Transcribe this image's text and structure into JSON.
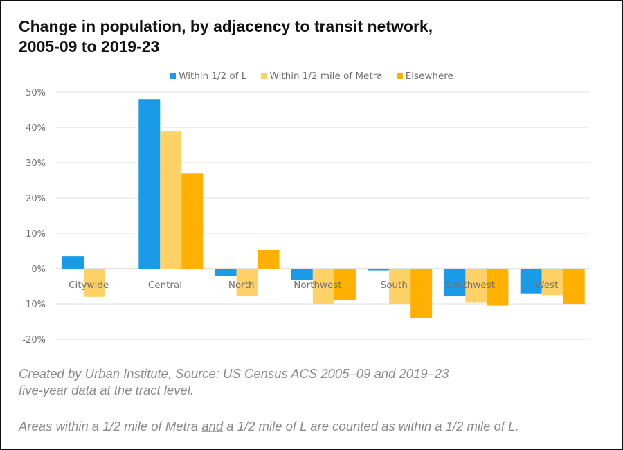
{
  "chart_data": {
    "type": "bar",
    "title": "Change in population, by adjacency to transit network, 2005-09 to 2019-23",
    "title_lines": [
      "Change in population, by adjacency to transit network,",
      "2005-09 to 2019-23"
    ],
    "xlabel": "",
    "ylabel": "",
    "ylim": [
      -0.2,
      0.5
    ],
    "yticks": [
      0.5,
      0.4,
      0.3,
      0.2,
      0.1,
      0.0,
      -0.1,
      -0.2
    ],
    "ytick_labels": [
      "50%",
      "40%",
      "30%",
      "20%",
      "10%",
      "0%",
      "-10%",
      "-20%"
    ],
    "grid": true,
    "legend_position": "top-center",
    "categories": [
      "Citywide",
      "Central",
      "North",
      "Northwest",
      "South",
      "Southwest",
      "West"
    ],
    "series": [
      {
        "name": "Within 1/2 of L",
        "color": "#1a9be8",
        "values": [
          0.035,
          0.48,
          -0.02,
          -0.033,
          -0.005,
          -0.077,
          -0.07
        ]
      },
      {
        "name": "Within 1/2 mile of Metra",
        "color": "#ffd166",
        "values": [
          -0.08,
          0.39,
          -0.078,
          -0.1,
          -0.1,
          -0.095,
          -0.075
        ]
      },
      {
        "name": "Elsewhere",
        "color": "#ffb000",
        "values": [
          0.0,
          0.27,
          0.053,
          -0.09,
          -0.14,
          -0.105,
          -0.1
        ]
      }
    ]
  },
  "footnotes": {
    "source_line1": "Created by Urban Institute, Source: US Census ACS 2005–09 and 2019–23",
    "source_line2": "five-year data at the tract level.",
    "note_part1": "Areas within a 1/2 mile of Metra ",
    "note_underlined": "and",
    "note_part2": " a 1/2 mile of L are counted as within a 1/2 mile of L."
  }
}
